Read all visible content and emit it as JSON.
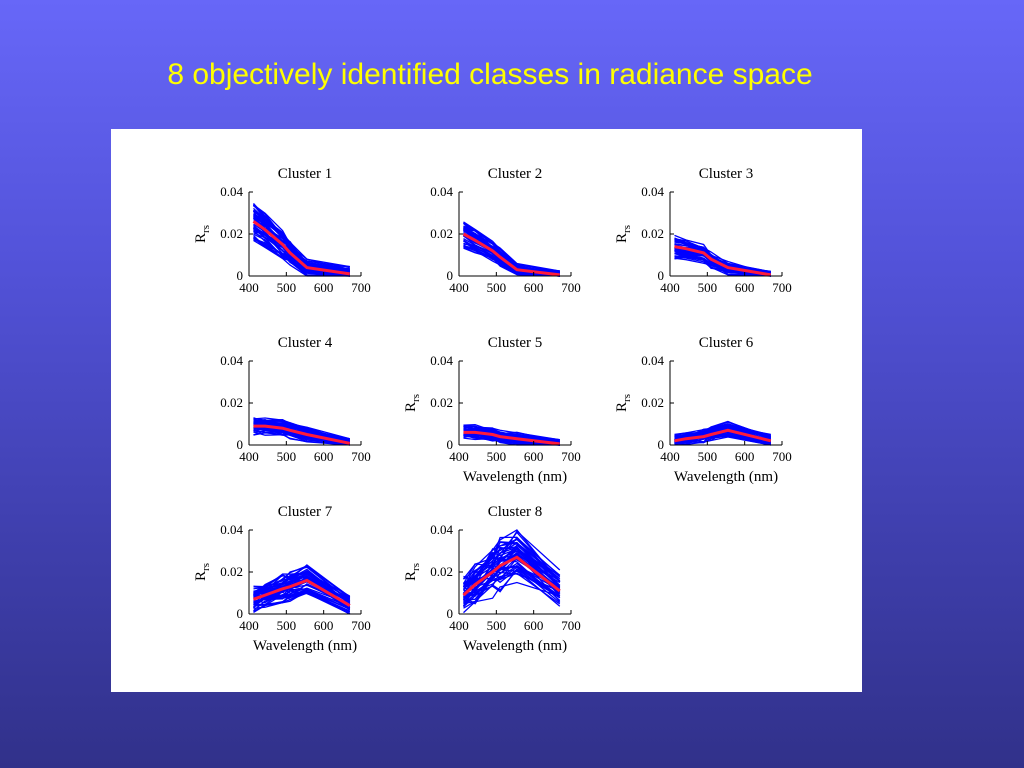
{
  "slide": {
    "title": "8 objectively identified classes in radiance space"
  },
  "colors": {
    "background_top": "#6767f8",
    "background_bottom": "#31318a",
    "title": "#ffff00",
    "member_lines": "#0000ff",
    "mean_line": "#ff1a3c"
  },
  "chart_data": [
    {
      "type": "line",
      "title": "Cluster 1",
      "xlabel": "",
      "ylabel": "R_rs",
      "x": [
        412,
        443,
        490,
        510,
        555,
        670
      ],
      "ylim": [
        0,
        0.04
      ],
      "xlim": [
        400,
        700
      ],
      "xticks": [
        "400",
        "500",
        "600",
        "700"
      ],
      "yticks": [
        "0",
        "0.02",
        "0.04"
      ],
      "mean": [
        0.026,
        0.022,
        0.015,
        0.011,
        0.004,
        0.001
      ],
      "spread": 0.003
    },
    {
      "type": "line",
      "title": "Cluster 2",
      "xlabel": "",
      "ylabel": "",
      "x": [
        412,
        443,
        490,
        510,
        555,
        670
      ],
      "ylim": [
        0,
        0.04
      ],
      "xlim": [
        400,
        700
      ],
      "xticks": [
        "400",
        "500",
        "600",
        "700"
      ],
      "yticks": [
        "0",
        "0.02",
        "0.04"
      ],
      "mean": [
        0.02,
        0.017,
        0.012,
        0.009,
        0.003,
        0.0005
      ],
      "spread": 0.002
    },
    {
      "type": "line",
      "title": "Cluster 3",
      "xlabel": "",
      "ylabel": "R_rs",
      "x": [
        412,
        443,
        490,
        510,
        555,
        670
      ],
      "ylim": [
        0,
        0.04
      ],
      "xlim": [
        400,
        700
      ],
      "xticks": [
        "400",
        "500",
        "600",
        "700"
      ],
      "yticks": [
        "0",
        "0.02",
        "0.04"
      ],
      "mean": [
        0.014,
        0.013,
        0.011,
        0.008,
        0.004,
        0.0005
      ],
      "spread": 0.002
    },
    {
      "type": "line",
      "title": "Cluster 4",
      "xlabel": "",
      "ylabel": "",
      "x": [
        412,
        443,
        490,
        510,
        555,
        670
      ],
      "ylim": [
        0,
        0.04
      ],
      "xlim": [
        400,
        700
      ],
      "xticks": [
        "400",
        "500",
        "600",
        "700"
      ],
      "yticks": [
        "0",
        "0.02",
        "0.04"
      ],
      "mean": [
        0.009,
        0.009,
        0.008,
        0.007,
        0.005,
        0.0008
      ],
      "spread": 0.002
    },
    {
      "type": "line",
      "title": "Cluster 5",
      "xlabel": "Wavelength (nm)",
      "ylabel": "R_rs",
      "x": [
        412,
        443,
        490,
        510,
        555,
        670
      ],
      "ylim": [
        0,
        0.04
      ],
      "xlim": [
        400,
        700
      ],
      "xticks": [
        "400",
        "500",
        "600",
        "700"
      ],
      "yticks": [
        "0",
        "0.02",
        "0.04"
      ],
      "mean": [
        0.006,
        0.006,
        0.005,
        0.004,
        0.003,
        0.0005
      ],
      "spread": 0.002
    },
    {
      "type": "line",
      "title": "Cluster 6",
      "xlabel": "Wavelength (nm)",
      "ylabel": "R_rs",
      "x": [
        412,
        443,
        490,
        510,
        555,
        670
      ],
      "ylim": [
        0,
        0.04
      ],
      "xlim": [
        400,
        700
      ],
      "xticks": [
        "400",
        "500",
        "600",
        "700"
      ],
      "yticks": [
        "0",
        "0.02",
        "0.04"
      ],
      "mean": [
        0.002,
        0.003,
        0.004,
        0.005,
        0.007,
        0.002
      ],
      "spread": 0.0025
    },
    {
      "type": "line",
      "title": "Cluster 7",
      "xlabel": "Wavelength (nm)",
      "ylabel": "R_rs",
      "x": [
        412,
        443,
        490,
        510,
        555,
        670
      ],
      "ylim": [
        0,
        0.04
      ],
      "xlim": [
        400,
        700
      ],
      "xticks": [
        "400",
        "500",
        "600",
        "700"
      ],
      "yticks": [
        "0",
        "0.02",
        "0.04"
      ],
      "mean": [
        0.007,
        0.009,
        0.012,
        0.013,
        0.016,
        0.004
      ],
      "spread": 0.004
    },
    {
      "type": "line",
      "title": "Cluster 8",
      "xlabel": "Wavelength (nm)",
      "ylabel": "R_rs",
      "x": [
        412,
        443,
        490,
        510,
        555,
        670
      ],
      "ylim": [
        0,
        0.04
      ],
      "xlim": [
        400,
        700
      ],
      "xticks": [
        "400",
        "500",
        "600",
        "700"
      ],
      "yticks": [
        "0",
        "0.02",
        "0.04"
      ],
      "mean": [
        0.009,
        0.014,
        0.02,
        0.023,
        0.027,
        0.011
      ],
      "spread": 0.007
    }
  ]
}
